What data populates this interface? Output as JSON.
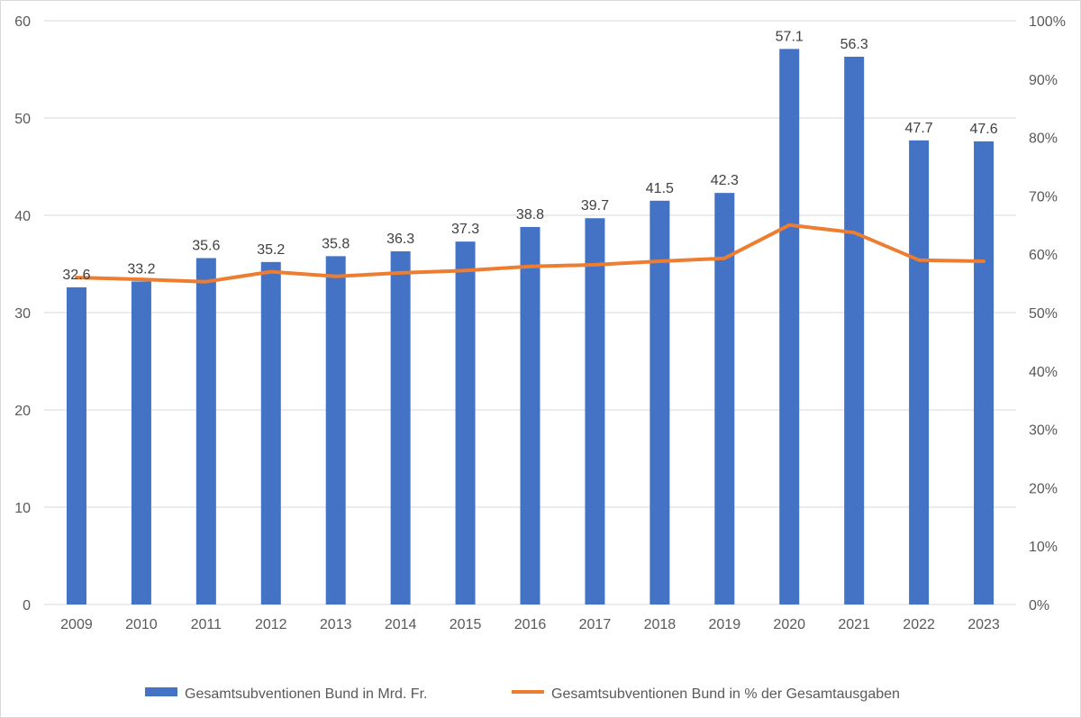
{
  "chart_data": {
    "type": "bar+line",
    "categories": [
      "2009",
      "2010",
      "2011",
      "2012",
      "2013",
      "2014",
      "2015",
      "2016",
      "2017",
      "2018",
      "2019",
      "2020",
      "2021",
      "2022",
      "2023"
    ],
    "series": [
      {
        "name": "Gesamtsubventionen Bund in Mrd. Fr.",
        "type": "bar",
        "axis": "left",
        "color": "#4472C4",
        "values": [
          32.6,
          33.2,
          35.6,
          35.2,
          35.8,
          36.3,
          37.3,
          38.8,
          39.7,
          41.5,
          42.3,
          57.1,
          56.3,
          47.7,
          47.6
        ],
        "value_labels": [
          "32.6",
          "33.2",
          "35.6",
          "35.2",
          "35.8",
          "36.3",
          "37.3",
          "38.8",
          "39.7",
          "41.5",
          "42.3",
          "57.1",
          "56.3",
          "47.7",
          "47.6"
        ]
      },
      {
        "name": "Gesamtsubventionen Bund in % der Gesamtausgaben",
        "type": "line",
        "axis": "right",
        "color": "#ED7D31",
        "values": [
          56.0,
          55.7,
          55.3,
          57.0,
          56.2,
          56.8,
          57.2,
          57.9,
          58.2,
          58.8,
          59.3,
          65.0,
          63.7,
          59.0,
          58.8
        ]
      }
    ],
    "y_left": {
      "min": 0,
      "max": 60,
      "ticks": [
        "0",
        "10",
        "20",
        "30",
        "40",
        "50",
        "60"
      ]
    },
    "y_right": {
      "min": 0,
      "max": 100,
      "ticks": [
        "0%",
        "10%",
        "20%",
        "30%",
        "40%",
        "50%",
        "60%",
        "70%",
        "80%",
        "90%",
        "100%"
      ]
    },
    "grid": true,
    "legend_position": "bottom",
    "title": ""
  }
}
